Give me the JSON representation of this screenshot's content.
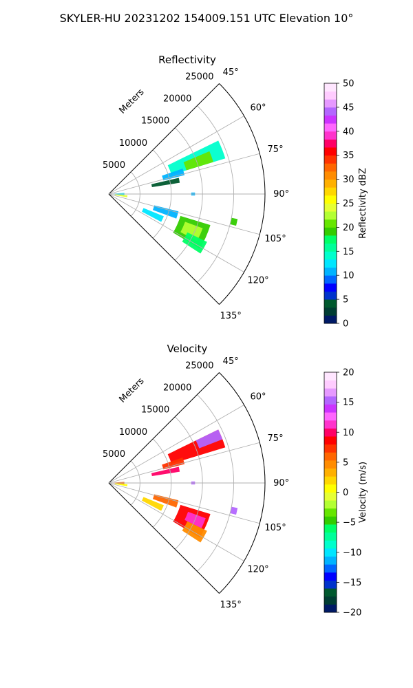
{
  "figure": {
    "title": "SKYLER-HU  20231202  154009.151 UTC Elevation 10°"
  },
  "chart_data": [
    {
      "type": "heatmap",
      "title": "Reflectivity",
      "radial_label": "Meters",
      "r_ticks": [
        5000,
        10000,
        15000,
        20000,
        25000
      ],
      "r_tick_labels": [
        "5000",
        "10000",
        "15000",
        "20000",
        "25000"
      ],
      "azimuth_range": [
        45,
        135
      ],
      "azimuth_ticks": [
        45,
        60,
        75,
        90,
        105,
        120,
        135
      ],
      "azimuth_tick_labels": [
        "45°",
        "60°",
        "75°",
        "90°",
        "105°",
        "120°",
        "135°"
      ],
      "r_max": 25000,
      "grid": true,
      "colorbar": {
        "label": "Reflectivity dBZ",
        "vmin": 0,
        "vmax": 50,
        "ticks": [
          0,
          5,
          10,
          15,
          20,
          25,
          30,
          35,
          40,
          45,
          50
        ],
        "tick_labels": [
          "0",
          "5",
          "10",
          "15",
          "20",
          "25",
          "30",
          "35",
          "40",
          "45",
          "50"
        ],
        "colors": [
          "#001a66",
          "#003d33",
          "#00592e",
          "#0033cc",
          "#0000ff",
          "#0066ff",
          "#00b3ff",
          "#00e6ff",
          "#00ffcc",
          "#00ff99",
          "#00ff66",
          "#33cc00",
          "#66e600",
          "#b3ff33",
          "#e6ff33",
          "#ffff00",
          "#ffd700",
          "#ffb000",
          "#ff8c00",
          "#ff6600",
          "#ff3300",
          "#ff0000",
          "#ff0066",
          "#ff33cc",
          "#ff66ff",
          "#cc33ff",
          "#b366ff",
          "#e699ff",
          "#ffccff",
          "#ffe6ff"
        ]
      },
      "echoes": [
        {
          "az_min": 64,
          "az_max": 73,
          "r_min": 10500,
          "r_max": 19500,
          "value": 14
        },
        {
          "az_min": 67,
          "az_max": 73,
          "r_min": 13000,
          "r_max": 17500,
          "value": 20
        },
        {
          "az_min": 71,
          "az_max": 76,
          "r_min": 9000,
          "r_max": 12500,
          "value": 11
        },
        {
          "az_min": 77,
          "az_max": 81,
          "r_min": 7000,
          "r_max": 11500,
          "value": 4
        },
        {
          "az_min": 86,
          "az_max": 94,
          "r_min": 500,
          "r_max": 2500,
          "value": 12
        },
        {
          "az_min": 94,
          "az_max": 100,
          "r_min": 1000,
          "r_max": 3000,
          "value": 24
        },
        {
          "az_min": 104,
          "az_max": 110,
          "r_min": 7500,
          "r_max": 11500,
          "value": 10
        },
        {
          "az_min": 112,
          "az_max": 118,
          "r_min": 6000,
          "r_max": 9500,
          "value": 12
        },
        {
          "az_min": 107,
          "az_max": 121,
          "r_min": 12000,
          "r_max": 17000,
          "value": 19
        },
        {
          "az_min": 110,
          "az_max": 118,
          "r_min": 13000,
          "r_max": 16000,
          "value": 22
        },
        {
          "az_min": 116,
          "az_max": 123,
          "r_min": 14000,
          "r_max": 17500,
          "value": 17
        },
        {
          "az_min": 101,
          "az_max": 104,
          "r_min": 20000,
          "r_max": 21000,
          "value": 19
        },
        {
          "az_min": 89,
          "az_max": 91,
          "r_min": 13200,
          "r_max": 13800,
          "value": 10
        }
      ]
    },
    {
      "type": "heatmap",
      "title": "Velocity",
      "radial_label": "Meters",
      "r_ticks": [
        5000,
        10000,
        15000,
        20000,
        25000
      ],
      "r_tick_labels": [
        "5000",
        "10000",
        "15000",
        "20000",
        "25000"
      ],
      "azimuth_range": [
        45,
        135
      ],
      "azimuth_ticks": [
        45,
        60,
        75,
        90,
        105,
        120,
        135
      ],
      "azimuth_tick_labels": [
        "45°",
        "60°",
        "75°",
        "90°",
        "105°",
        "120°",
        "135°"
      ],
      "r_max": 25000,
      "grid": true,
      "colorbar": {
        "label": "Velocity (m/s)",
        "vmin": -20,
        "vmax": 20,
        "ticks": [
          -20,
          -15,
          -10,
          -5,
          0,
          5,
          10,
          15,
          20
        ],
        "tick_labels": [
          "−20",
          "−15",
          "−10",
          "−5",
          "0",
          "5",
          "10",
          "15",
          "20"
        ],
        "colors": [
          "#001a66",
          "#003d33",
          "#00592e",
          "#0033cc",
          "#0000ff",
          "#0066ff",
          "#00b3ff",
          "#00e6ff",
          "#00ffcc",
          "#00ff99",
          "#00ff66",
          "#33cc00",
          "#66e600",
          "#b3ff33",
          "#e6ff33",
          "#ffff00",
          "#ffd700",
          "#ffb000",
          "#ff8c00",
          "#ff6600",
          "#ff3300",
          "#ff0000",
          "#ff0066",
          "#ff33cc",
          "#ff66ff",
          "#cc33ff",
          "#b366ff",
          "#e699ff",
          "#ffccff",
          "#ffe6ff"
        ]
      },
      "echoes": [
        {
          "az_min": 64,
          "az_max": 73,
          "r_min": 10500,
          "r_max": 19500,
          "value": 9
        },
        {
          "az_min": 64,
          "az_max": 69,
          "r_min": 15500,
          "r_max": 19500,
          "value": 15
        },
        {
          "az_min": 71,
          "az_max": 76,
          "r_min": 9000,
          "r_max": 12500,
          "value": 7
        },
        {
          "az_min": 77,
          "az_max": 81,
          "r_min": 7000,
          "r_max": 11500,
          "value": 10
        },
        {
          "az_min": 86,
          "az_max": 94,
          "r_min": 500,
          "r_max": 2500,
          "value": 6
        },
        {
          "az_min": 94,
          "az_max": 100,
          "r_min": 1000,
          "r_max": 3000,
          "value": 1
        },
        {
          "az_min": 104,
          "az_max": 110,
          "r_min": 7500,
          "r_max": 11500,
          "value": 6
        },
        {
          "az_min": 112,
          "az_max": 118,
          "r_min": 6000,
          "r_max": 9500,
          "value": 2
        },
        {
          "az_min": 107,
          "az_max": 121,
          "r_min": 12000,
          "r_max": 17000,
          "value": 9
        },
        {
          "az_min": 110,
          "az_max": 116,
          "r_min": 13500,
          "r_max": 16500,
          "value": 11
        },
        {
          "az_min": 116,
          "az_max": 123,
          "r_min": 14000,
          "r_max": 17500,
          "value": 5
        },
        {
          "az_min": 101,
          "az_max": 104,
          "r_min": 20000,
          "r_max": 21000,
          "value": 15
        },
        {
          "az_min": 89,
          "az_max": 91,
          "r_min": 13200,
          "r_max": 13800,
          "value": 15
        }
      ]
    }
  ]
}
